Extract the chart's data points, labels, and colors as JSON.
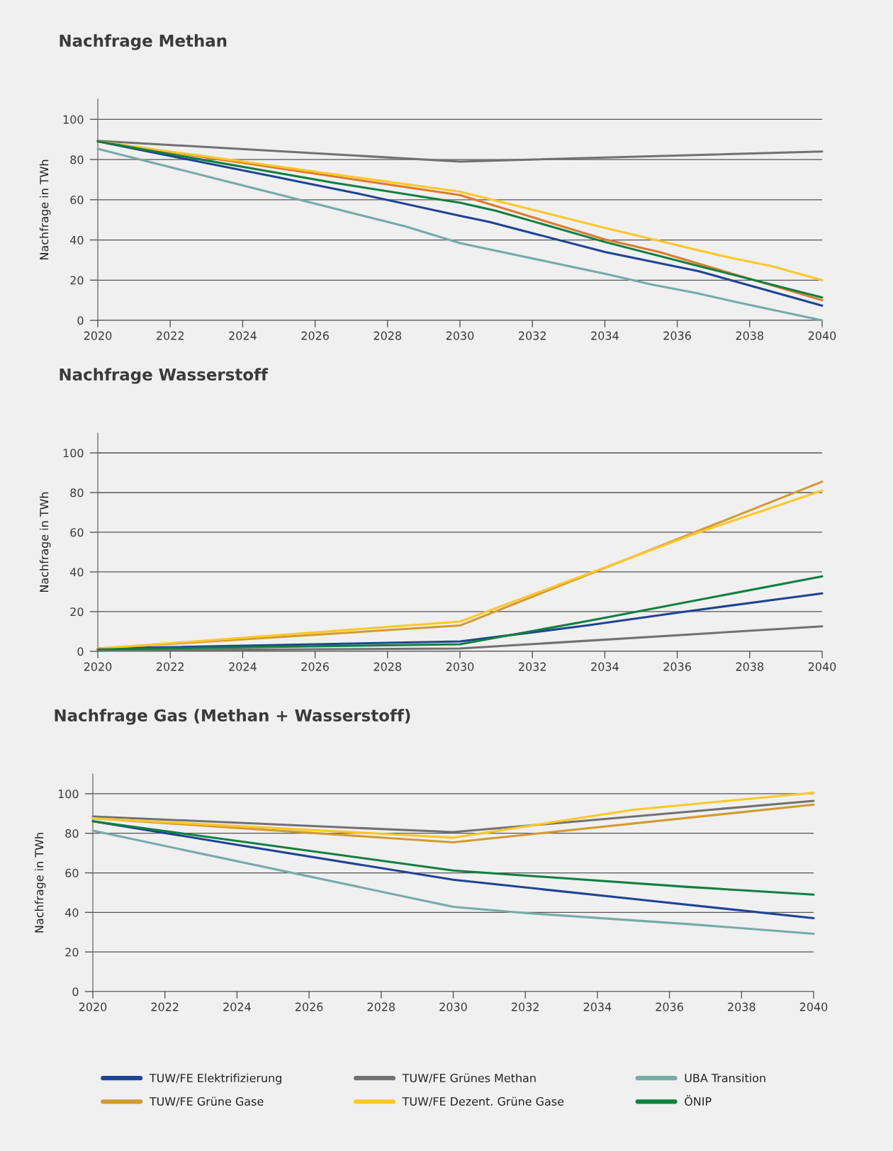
{
  "chart_data": [
    {
      "type": "line",
      "title": "Nachfrage Methan",
      "ylabel": "Nachfrage in TWh",
      "xlim": [
        2020,
        2040
      ],
      "ylim": [
        0,
        110
      ],
      "xticks": [
        2020,
        2022,
        2024,
        2026,
        2028,
        2030,
        2032,
        2034,
        2036,
        2038,
        2040
      ],
      "yticks": [
        0,
        20,
        40,
        60,
        80,
        100
      ],
      "grid": "y",
      "legend": false,
      "series": [
        {
          "color": "#1f4494",
          "x": [
            2020,
            2025,
            2027.2,
            2030,
            2030.8,
            2034,
            2036.6,
            2040
          ],
          "values": [
            89,
            71,
            63,
            52,
            49,
            34,
            24.4,
            7.3
          ]
        },
        {
          "color": "#e07a2a",
          "x": [
            2020,
            2030,
            2034,
            2035.5,
            2040
          ],
          "values": [
            89,
            62.3,
            40.3,
            34,
            10
          ]
        },
        {
          "color": "#717171",
          "x": [
            2020,
            2030,
            2040
          ],
          "values": [
            89.3,
            79,
            84
          ]
        },
        {
          "color": "#fcc72a",
          "x": [
            2020,
            2030,
            2034,
            2037.3,
            2038.6,
            2040
          ],
          "values": [
            89,
            64,
            46,
            31.8,
            27,
            20
          ]
        },
        {
          "color": "#74aca8",
          "x": [
            2020,
            2028.5,
            2030,
            2034,
            2035.3,
            2036.5,
            2037.7,
            2040
          ],
          "values": [
            85.3,
            46.7,
            38.4,
            23.2,
            17.8,
            13.7,
            8.8,
            0
          ]
        },
        {
          "color": "#0f8040",
          "x": [
            2020,
            2026.5,
            2030,
            2031,
            2034,
            2036.6,
            2040
          ],
          "values": [
            89,
            68.5,
            58.5,
            54.5,
            39,
            27,
            11.4
          ]
        }
      ]
    },
    {
      "type": "line",
      "title": "Nachfrage Wasserstoff",
      "ylabel": "Nachfrage in TWh",
      "xlim": [
        2020,
        2040
      ],
      "ylim": [
        0,
        110
      ],
      "xticks": [
        2020,
        2022,
        2024,
        2026,
        2028,
        2030,
        2032,
        2034,
        2036,
        2038,
        2040
      ],
      "yticks": [
        0,
        20,
        40,
        60,
        80,
        100
      ],
      "grid": "y",
      "legend": false,
      "series": [
        {
          "color": "#1f4494",
          "x": [
            2020,
            2030,
            2033.5,
            2036,
            2040
          ],
          "values": [
            1.4,
            5,
            13,
            19.5,
            29.2
          ]
        },
        {
          "color": "#d39a30",
          "x": [
            2020,
            2030,
            2040
          ],
          "values": [
            1.4,
            13,
            85.5
          ]
        },
        {
          "color": "#717171",
          "x": [
            2020,
            2030,
            2040
          ],
          "values": [
            0.5,
            1.4,
            12.6
          ]
        },
        {
          "color": "#fcc72a",
          "x": [
            2020,
            2030,
            2036.6,
            2040
          ],
          "values": [
            1.4,
            15,
            60,
            81
          ]
        },
        {
          "color": "#0f8040",
          "x": [
            2020,
            2030,
            2033.5,
            2040
          ],
          "values": [
            1,
            3.6,
            15.2,
            37.8
          ]
        }
      ]
    },
    {
      "type": "line",
      "title": "Nachfrage Gas (Methan + Wasserstoff)",
      "ylabel": "Nachfrage in TWh",
      "xlim": [
        2020,
        2040
      ],
      "ylim": [
        0,
        110
      ],
      "xticks": [
        2020,
        2022,
        2024,
        2026,
        2028,
        2030,
        2032,
        2034,
        2036,
        2038,
        2040
      ],
      "yticks": [
        0,
        20,
        40,
        60,
        80,
        100
      ],
      "grid": "y",
      "legend": "bottom",
      "series": [
        {
          "name": "TUW/FE Elektrifizierung",
          "color": "#1f4494",
          "x": [
            2020,
            2024,
            2030,
            2040
          ],
          "values": [
            86.1,
            74.2,
            56.5,
            37.1
          ]
        },
        {
          "name": "TUW/FE Grüne Gase",
          "color": "#d39a30",
          "x": [
            2020,
            2030,
            2040
          ],
          "values": [
            87.6,
            75.4,
            94.5
          ]
        },
        {
          "name": "TUW/FE Grünes Methan",
          "color": "#717171",
          "x": [
            2020,
            2030,
            2040
          ],
          "values": [
            88.5,
            80.6,
            96.4
          ]
        },
        {
          "name": "TUW/FE Dezent. Grüne Gase",
          "color": "#fcc72a",
          "x": [
            2020,
            2030,
            2035,
            2040
          ],
          "values": [
            87.6,
            77.8,
            91.9,
            100.5
          ]
        },
        {
          "name": "UBA Transition",
          "color": "#74aca8",
          "x": [
            2020,
            2030,
            2032,
            2036.6,
            2040
          ],
          "values": [
            81.3,
            42.8,
            39.7,
            34,
            29.2
          ]
        },
        {
          "name": "ÖNIP",
          "color": "#0f8040",
          "x": [
            2020,
            2030,
            2036.5,
            2040
          ],
          "values": [
            86.1,
            61.2,
            52.9,
            49
          ]
        }
      ]
    }
  ]
}
